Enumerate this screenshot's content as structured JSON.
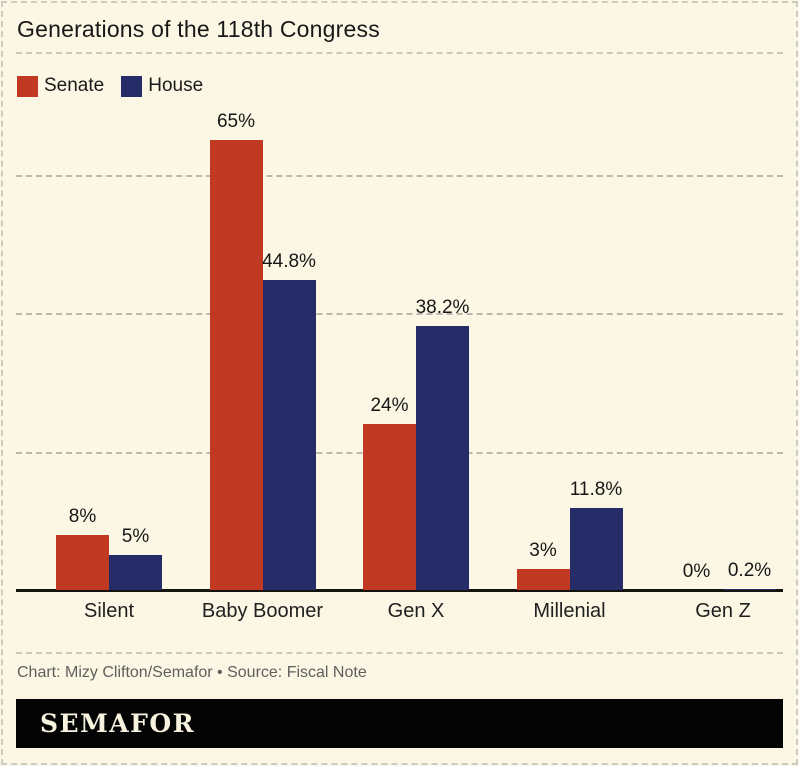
{
  "title": "Generations of the 118th Congress",
  "legend": {
    "items": [
      {
        "label": "Senate",
        "color": "#c13922"
      },
      {
        "label": "House",
        "color": "#252c68"
      }
    ]
  },
  "chart_data": {
    "type": "bar",
    "title": "Generations of the 118th Congress",
    "categories": [
      "Silent",
      "Baby Boomer",
      "Gen X",
      "Millenial",
      "Gen Z"
    ],
    "series": [
      {
        "name": "Senate",
        "color": "#c13922",
        "values": [
          8,
          65,
          24,
          3,
          0
        ],
        "labels": [
          "8%",
          "65%",
          "24%",
          "3%",
          "0%"
        ]
      },
      {
        "name": "House",
        "color": "#252c68",
        "values": [
          5,
          44.8,
          38.2,
          11.8,
          0.2
        ],
        "labels": [
          "5%",
          "44.8%",
          "38.2%",
          "11.8%",
          "0.2%"
        ]
      }
    ],
    "xlabel": "",
    "ylabel": "",
    "ylim": [
      0,
      70
    ],
    "grid": "horizontal dashed lines at 20, 40, 60 (unlabeled)",
    "legend_position": "top-left",
    "value_labels": "shown above each bar"
  },
  "footer": {
    "credit": "Chart: Mizy Clifton/Semafor • Source: Fiscal Note",
    "logo": "SEMAFOR"
  },
  "colors": {
    "background": "#fbf7e4",
    "senate": "#c13922",
    "house": "#252c68",
    "axis": "#15130e",
    "gridline": "#b9b9ae",
    "text": "#1b1b1b",
    "credit_text": "#5f5f5c",
    "logo_background": "#040404",
    "logo_text": "#f8f3df"
  }
}
